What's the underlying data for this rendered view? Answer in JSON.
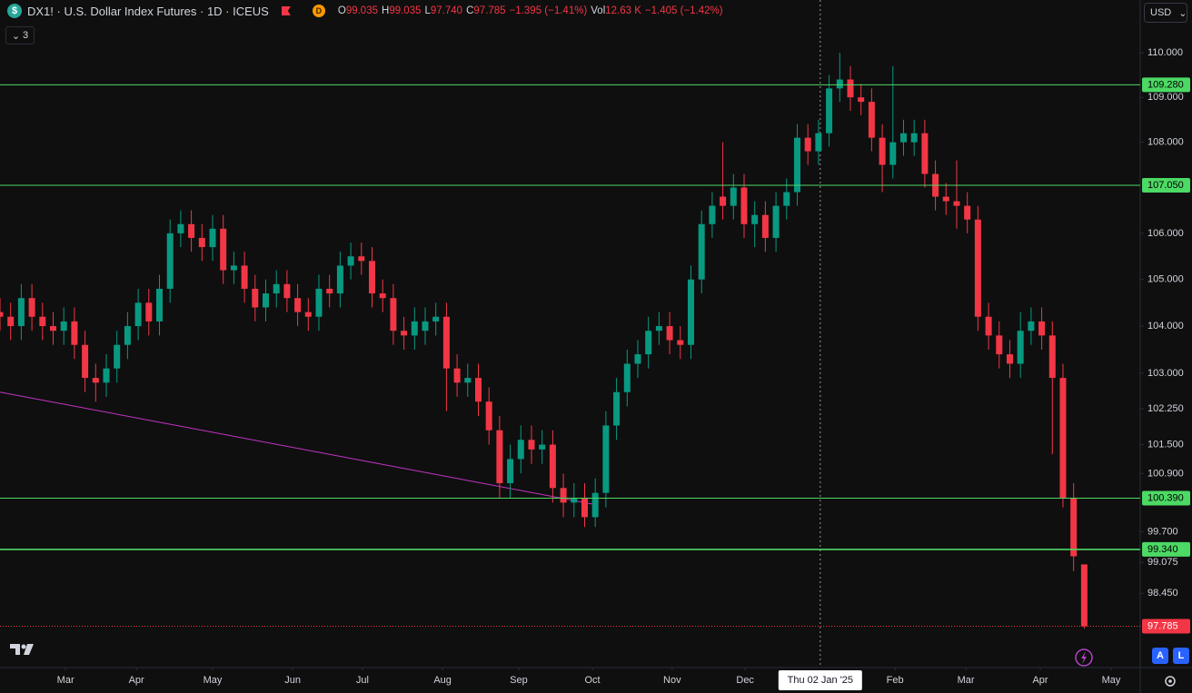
{
  "header": {
    "symbol_icon": "$",
    "symbol": "DX1! · U.S. Dollar Index Futures · 1D · ICEUS",
    "exchange_badge": "D",
    "ohlc": [
      {
        "key": "O",
        "value": "99.035"
      },
      {
        "key": "H",
        "value": "99.035"
      },
      {
        "key": "L",
        "value": "97.740"
      },
      {
        "key": "C",
        "value": "97.785"
      }
    ],
    "change": "−1.395 (−1.41%)",
    "volume_key": "Vol",
    "volume": "12.63 K",
    "volume_change": "−1.405 (−1.42%)"
  },
  "ui": {
    "currency": "USD",
    "indicator_count": "3",
    "buttons": [
      "A",
      "L"
    ]
  },
  "chart_data": {
    "type": "candlestick",
    "x": [
      0,
      3,
      6,
      9,
      12,
      15,
      18,
      21,
      24,
      27,
      30,
      33,
      36,
      39,
      42,
      45,
      48,
      51,
      54,
      57,
      60,
      63,
      66,
      69,
      72,
      75,
      78,
      81,
      84,
      87,
      90,
      93,
      96,
      99,
      102,
      105,
      108,
      111,
      114,
      117,
      120,
      123,
      126,
      129,
      132,
      135,
      138,
      141,
      144,
      147,
      150,
      153,
      156,
      159,
      162,
      165,
      168,
      171,
      174,
      177,
      180,
      183,
      186,
      189,
      192,
      195,
      198,
      201,
      204,
      207,
      210,
      213,
      216,
      219,
      222,
      225,
      228,
      231,
      234,
      237,
      240,
      243,
      246,
      249,
      252,
      255,
      258,
      261,
      264,
      267,
      270,
      273,
      276,
      279,
      282,
      285,
      288,
      291,
      294,
      297,
      300,
      303,
      306
    ],
    "open": [
      104.3,
      104.2,
      104.0,
      104.6,
      104.2,
      104.0,
      103.9,
      104.1,
      103.6,
      102.9,
      102.8,
      103.1,
      103.6,
      104.0,
      104.5,
      104.1,
      104.8,
      106.0,
      106.2,
      105.9,
      105.7,
      106.1,
      105.2,
      105.3,
      104.8,
      104.4,
      104.7,
      104.9,
      104.6,
      104.3,
      104.2,
      104.8,
      104.7,
      105.3,
      105.5,
      105.4,
      104.7,
      104.6,
      103.9,
      103.8,
      103.9,
      104.1,
      104.2,
      103.1,
      102.8,
      102.9,
      102.4,
      101.8,
      100.7,
      101.2,
      101.6,
      101.4,
      101.5,
      100.6,
      100.3,
      100.4,
      100.0,
      100.5,
      101.9,
      102.6,
      103.2,
      103.4,
      103.9,
      104.0,
      103.7,
      103.6,
      105.0,
      106.2,
      106.8,
      106.6,
      107.0,
      106.2,
      106.4,
      105.9,
      106.6,
      106.9,
      108.1,
      107.8,
      108.2,
      109.2,
      109.4,
      109.0,
      108.9,
      108.1,
      107.5,
      108.0,
      108.0,
      108.2,
      107.3,
      106.8,
      106.7,
      106.6,
      106.3,
      104.2,
      103.8,
      103.4,
      103.2,
      103.9,
      104.1,
      103.8,
      102.9,
      100.4,
      99.035
    ],
    "high": [
      104.6,
      104.5,
      104.9,
      104.9,
      104.5,
      104.3,
      104.4,
      104.4,
      103.9,
      103.2,
      103.4,
      103.9,
      104.3,
      104.8,
      104.8,
      105.1,
      106.3,
      106.5,
      106.5,
      106.2,
      106.4,
      106.4,
      105.6,
      105.6,
      105.1,
      105.0,
      105.2,
      105.2,
      104.9,
      104.6,
      105.1,
      105.1,
      105.6,
      105.8,
      105.8,
      105.7,
      105.0,
      104.9,
      104.2,
      104.4,
      104.4,
      104.5,
      104.5,
      103.4,
      103.2,
      103.2,
      102.7,
      102.1,
      101.5,
      101.9,
      101.9,
      101.8,
      101.8,
      100.9,
      100.7,
      100.7,
      100.8,
      102.2,
      102.9,
      103.5,
      103.7,
      104.2,
      104.3,
      104.3,
      104.0,
      105.3,
      106.5,
      106.9,
      108.0,
      107.3,
      107.3,
      106.7,
      106.7,
      106.9,
      107.2,
      108.4,
      108.4,
      108.5,
      109.5,
      110.0,
      109.7,
      109.3,
      109.2,
      108.4,
      109.7,
      108.5,
      108.5,
      108.5,
      107.6,
      107.1,
      107.6,
      106.9,
      106.6,
      104.5,
      104.1,
      103.7,
      104.3,
      104.4,
      104.4,
      104.1,
      103.2,
      100.7,
      99.035
    ],
    "low": [
      103.9,
      103.7,
      103.7,
      103.9,
      103.7,
      103.6,
      103.6,
      103.3,
      102.6,
      102.4,
      102.5,
      102.8,
      103.3,
      103.7,
      103.8,
      103.8,
      104.5,
      105.7,
      105.6,
      105.4,
      105.4,
      104.9,
      104.9,
      104.5,
      104.1,
      104.1,
      104.4,
      104.3,
      104.0,
      103.9,
      103.9,
      104.4,
      104.4,
      105.0,
      105.1,
      104.4,
      104.3,
      103.6,
      103.5,
      103.5,
      103.6,
      103.8,
      102.2,
      102.5,
      102.5,
      102.1,
      101.5,
      100.4,
      100.4,
      100.9,
      101.1,
      101.1,
      100.3,
      100.0,
      100.0,
      99.8,
      99.8,
      100.2,
      101.6,
      102.3,
      102.9,
      103.1,
      103.6,
      103.4,
      103.3,
      103.3,
      104.7,
      105.9,
      106.3,
      106.3,
      105.9,
      105.7,
      105.6,
      105.6,
      106.3,
      106.6,
      107.5,
      107.5,
      107.9,
      108.9,
      108.7,
      108.6,
      107.8,
      106.9,
      107.2,
      107.7,
      107.7,
      107.0,
      106.5,
      106.4,
      106.1,
      106.0,
      103.9,
      103.5,
      103.1,
      102.9,
      102.9,
      103.6,
      103.5,
      101.3,
      100.2,
      98.9,
      97.74
    ],
    "close": [
      104.2,
      104.0,
      104.6,
      104.2,
      104.0,
      103.9,
      104.1,
      103.6,
      102.9,
      102.8,
      103.1,
      103.6,
      104.0,
      104.5,
      104.1,
      104.8,
      106.0,
      106.2,
      105.9,
      105.7,
      106.1,
      105.2,
      105.3,
      104.8,
      104.4,
      104.7,
      104.9,
      104.6,
      104.3,
      104.2,
      104.8,
      104.7,
      105.3,
      105.5,
      105.4,
      104.7,
      104.6,
      103.9,
      103.8,
      104.1,
      104.1,
      104.2,
      103.1,
      102.8,
      102.9,
      102.4,
      101.8,
      100.7,
      101.2,
      101.6,
      101.4,
      101.5,
      100.6,
      100.3,
      100.4,
      100.0,
      100.5,
      101.9,
      102.6,
      103.2,
      103.4,
      103.9,
      104.0,
      103.7,
      103.6,
      105.0,
      106.2,
      106.6,
      106.6,
      107.0,
      106.2,
      106.4,
      105.9,
      106.6,
      106.9,
      108.1,
      107.8,
      108.2,
      109.2,
      109.4,
      109.0,
      108.9,
      108.1,
      107.5,
      108.0,
      108.2,
      108.2,
      107.3,
      106.8,
      106.7,
      106.6,
      106.3,
      104.2,
      103.8,
      103.4,
      103.2,
      103.9,
      104.1,
      103.8,
      102.9,
      100.4,
      99.2,
      97.785
    ],
    "up_color": "#089981",
    "down_color": "#f23645",
    "log_scale": true,
    "xlim": [
      0,
      321.8
    ],
    "ylim": [
      96.96,
      111.2
    ],
    "xticks": [
      {
        "value": 18.5,
        "label": "Mar"
      },
      {
        "value": 38.5,
        "label": "Apr"
      },
      {
        "value": 60,
        "label": "May"
      },
      {
        "value": 82.6,
        "label": "Jun"
      },
      {
        "value": 102.3,
        "label": "Jul"
      },
      {
        "value": 124.9,
        "label": "Aug"
      },
      {
        "value": 146.4,
        "label": "Sep"
      },
      {
        "value": 167.2,
        "label": "Oct"
      },
      {
        "value": 189.7,
        "label": "Nov"
      },
      {
        "value": 210.3,
        "label": "Dec"
      },
      {
        "value": 252.6,
        "label": "Feb"
      },
      {
        "value": 272.6,
        "label": "Mar"
      },
      {
        "value": 293.6,
        "label": "Apr"
      },
      {
        "value": 313.6,
        "label": "May"
      }
    ],
    "yticks": [
      {
        "value": 110,
        "label": "110.000"
      },
      {
        "value": 109,
        "label": "109.000"
      },
      {
        "value": 108,
        "label": "108.000"
      },
      {
        "value": 106,
        "label": "106.000"
      },
      {
        "value": 105,
        "label": "105.000"
      },
      {
        "value": 104,
        "label": "104.000"
      },
      {
        "value": 103,
        "label": "103.000"
      },
      {
        "value": 102.25,
        "label": "102.250"
      },
      {
        "value": 101.5,
        "label": "101.500"
      },
      {
        "value": 100.9,
        "label": "100.900"
      },
      {
        "value": 99.7,
        "label": "99.700"
      },
      {
        "value": 99.075,
        "label": "99.075"
      },
      {
        "value": 98.45,
        "label": "98.450"
      }
    ],
    "levels": [
      {
        "value": 109.28,
        "label": "109.280",
        "color": "#4cd964"
      },
      {
        "value": 107.05,
        "label": "107.050",
        "color": "#4cd964"
      },
      {
        "value": 100.39,
        "label": "100.390",
        "color": "#4cd964"
      },
      {
        "value": 99.34,
        "label": "99.340",
        "color": "#4cd964"
      }
    ],
    "last_price": {
      "value": 97.785,
      "label": "97.785",
      "color": "#f23645"
    },
    "trendline": {
      "x": [
        0,
        167.2
      ],
      "y": [
        102.6,
        100.27
      ],
      "color": "#c534c5"
    },
    "crosshair": {
      "x": 231.5,
      "label": "Thu 02 Jan '25"
    }
  }
}
